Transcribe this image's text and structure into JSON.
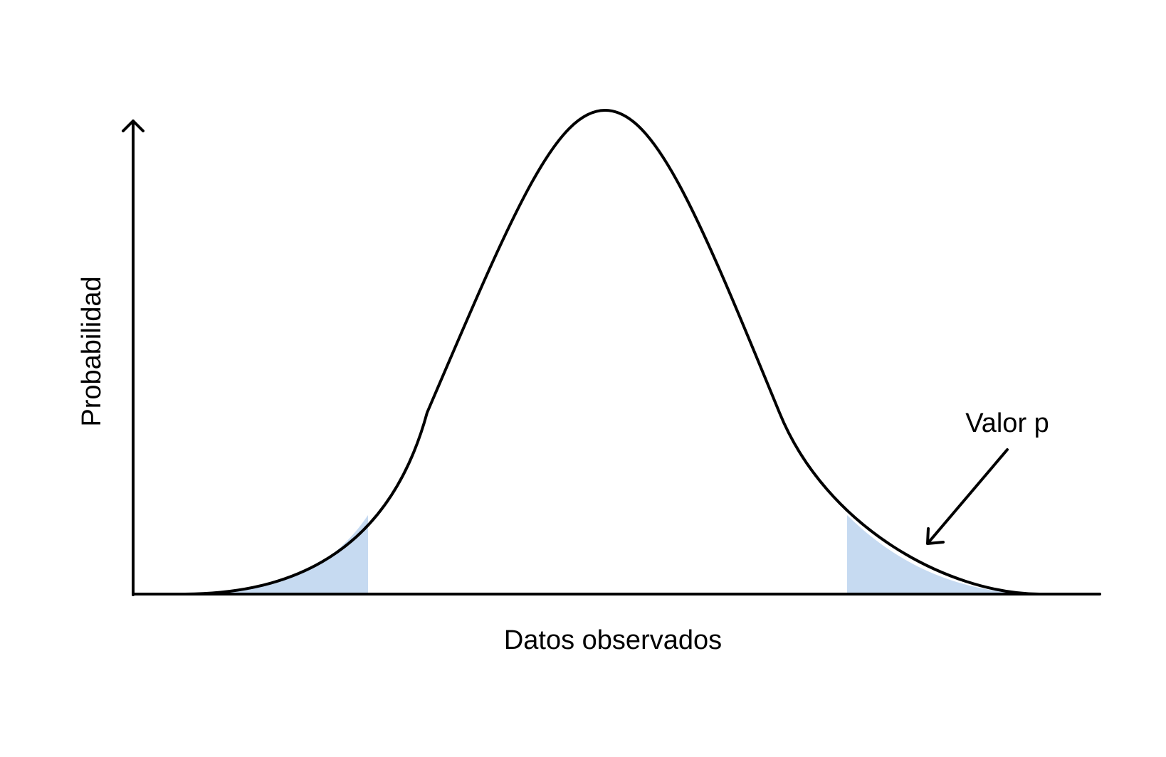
{
  "diagram": {
    "x_axis_label": "Datos observados",
    "y_axis_label": "Probabilidad",
    "annotation_label": "Valor p",
    "colors": {
      "curve": "#000000",
      "axes": "#000000",
      "shaded_tails": "#c6daf1",
      "background": "#ffffff"
    }
  }
}
